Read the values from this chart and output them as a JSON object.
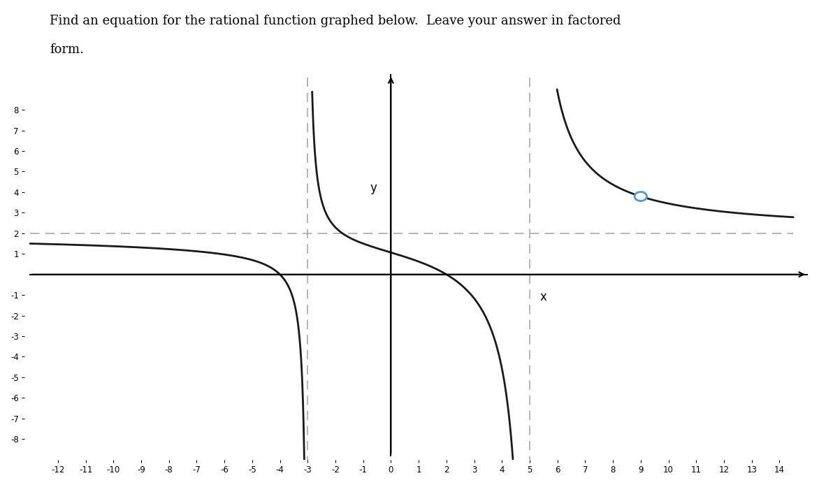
{
  "title_line1": "Find an equation for the rational function graphed below.  Leave your answer in factored",
  "title_line2": "form.",
  "title_fontsize": 13,
  "xmin": -13,
  "xmax": 14.5,
  "ymin": -8.8,
  "ymax": 9.2,
  "xlabel": "x",
  "ylabel": "y",
  "vertical_asymptotes": [
    -3,
    5
  ],
  "horizontal_asymptote": 2,
  "hole_x": 9,
  "hole_y": 4,
  "xticks": [
    -12,
    -11,
    -10,
    -9,
    -8,
    -7,
    -6,
    -5,
    -4,
    -3,
    -2,
    -1,
    0,
    1,
    2,
    3,
    4,
    5,
    6,
    7,
    8,
    9,
    10,
    11,
    12,
    13,
    14
  ],
  "yticks": [
    -8,
    -7,
    -6,
    -5,
    -4,
    -3,
    -2,
    -1,
    1,
    2,
    3,
    4,
    5,
    6,
    7,
    8
  ],
  "dashed_color": "#aaaaaa",
  "curve_color": "#1a1a1a",
  "hole_edge_color": "#5599cc",
  "background_color": "#ffffff",
  "clip_ymin": -9,
  "clip_ymax": 9
}
